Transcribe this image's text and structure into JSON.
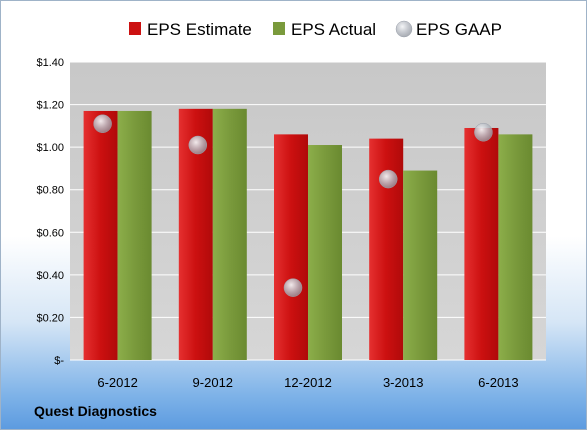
{
  "chart_data": {
    "type": "bar",
    "categories": [
      "6-2012",
      "9-2012",
      "12-2012",
      "3-2013",
      "6-2013"
    ],
    "series": [
      {
        "name": "EPS Estimate",
        "kind": "bar",
        "color": "#cc1111",
        "values": [
          1.17,
          1.18,
          1.06,
          1.04,
          1.09
        ]
      },
      {
        "name": "EPS Actual",
        "kind": "bar",
        "color": "#7a9a3c",
        "values": [
          1.17,
          1.18,
          1.01,
          0.89,
          1.06
        ]
      },
      {
        "name": "EPS GAAP",
        "kind": "marker",
        "color": "#b8bcc4",
        "values": [
          1.11,
          1.01,
          0.34,
          0.85,
          1.07
        ]
      }
    ],
    "ylim": [
      0,
      1.4
    ],
    "yticks": [
      {
        "value": 1.4,
        "label": "$1.40"
      },
      {
        "value": 1.2,
        "label": "$1.20"
      },
      {
        "value": 1.0,
        "label": "$1.00"
      },
      {
        "value": 0.8,
        "label": "$0.80"
      },
      {
        "value": 0.6,
        "label": "$0.60"
      },
      {
        "value": 0.4,
        "label": "$0.40"
      },
      {
        "value": 0.2,
        "label": "$0.20"
      },
      {
        "value": 0.0,
        "label": "$-"
      }
    ],
    "grid": true,
    "legend": "top"
  },
  "company": "Quest Diagnostics"
}
